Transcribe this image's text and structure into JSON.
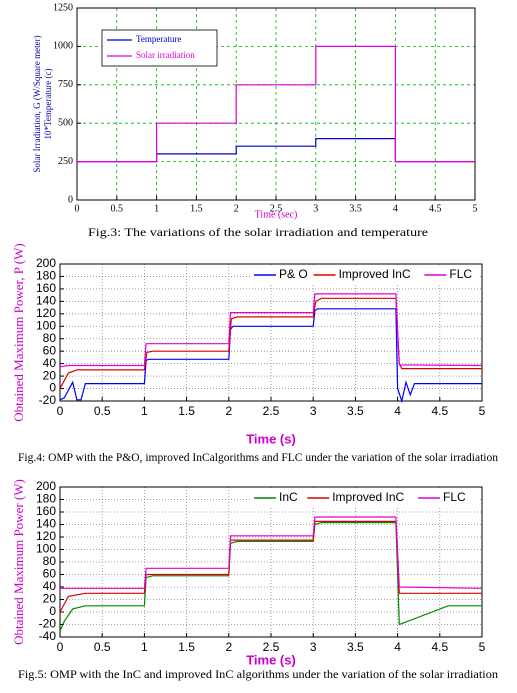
{
  "chart_data": [
    {
      "type": "line",
      "caption": "Fig.3: The variations of the solar irradiation and temperature",
      "xlabel": "Time (sec)",
      "ylabel": [
        "Solar Irradiation, G (W/Square meter)",
        "10*Temperature (c)"
      ],
      "xlim": [
        0,
        5
      ],
      "ylim": [
        0,
        1250
      ],
      "xticks": [
        0,
        0.5,
        1,
        1.5,
        2,
        2.5,
        3,
        3.5,
        4,
        4.5,
        5
      ],
      "yticks": [
        0,
        250,
        500,
        750,
        1000,
        1250
      ],
      "grid": true,
      "grid_color": "#00b000",
      "legend": "upper left",
      "series": [
        {
          "name": "Temperature",
          "color": "#0000cc",
          "x": [
            0,
            1,
            1,
            2,
            2,
            3,
            3,
            4,
            4,
            5
          ],
          "values": [
            250,
            250,
            300,
            300,
            350,
            350,
            400,
            400,
            250,
            250
          ]
        },
        {
          "name": "Solar irradiation",
          "color": "#dd00dd",
          "x": [
            0,
            1,
            1,
            2,
            2,
            3,
            3,
            4,
            4,
            5
          ],
          "values": [
            250,
            250,
            500,
            500,
            750,
            750,
            1000,
            1000,
            250,
            250
          ]
        }
      ]
    },
    {
      "type": "line",
      "caption": "Fig.4: OMP with the P&O, improved InCalgorithms and FLC under the variation of the solar irradiation",
      "xlabel": "Time (s)",
      "ylabel": [
        "Obtained Maximum Power, P (W)"
      ],
      "xlim": [
        0,
        5
      ],
      "ylim": [
        -20,
        200
      ],
      "xticks": [
        0,
        0.5,
        1,
        1.5,
        2,
        2.5,
        3,
        3.5,
        4,
        4.5,
        5
      ],
      "yticks": [
        -20,
        0,
        20,
        40,
        60,
        80,
        100,
        120,
        140,
        160,
        180,
        200
      ],
      "grid": true,
      "grid_color": "#888888",
      "legend": "upper right",
      "series": [
        {
          "name": "P& O",
          "color": "#0000ff",
          "x": [
            0,
            0.05,
            0.15,
            0.2,
            0.25,
            0.3,
            1.0,
            1.02,
            1.05,
            2.0,
            2.02,
            2.05,
            3.0,
            3.02,
            3.05,
            3.98,
            4.0,
            4.05,
            4.1,
            4.15,
            4.2,
            5
          ],
          "values": [
            -18,
            -15,
            10,
            -18,
            -18,
            8,
            8,
            45,
            47,
            47,
            95,
            100,
            100,
            125,
            128,
            128,
            0,
            -20,
            10,
            -10,
            8,
            8
          ]
        },
        {
          "name": "Improved InC",
          "color": "#dd0000",
          "x": [
            0,
            0.1,
            0.2,
            1.0,
            1.03,
            1.1,
            2.0,
            2.03,
            2.1,
            3.0,
            3.03,
            3.1,
            3.98,
            4.02,
            4.05,
            5
          ],
          "values": [
            0,
            25,
            30,
            30,
            58,
            60,
            60,
            112,
            115,
            115,
            140,
            145,
            145,
            40,
            32,
            32
          ]
        },
        {
          "name": "FLC",
          "color": "#dd00dd",
          "x": [
            0,
            0.1,
            1.0,
            1.02,
            2.0,
            2.02,
            3.0,
            3.02,
            3.98,
            4.02,
            5
          ],
          "values": [
            35,
            37,
            37,
            72,
            72,
            122,
            122,
            152,
            152,
            38,
            37
          ]
        }
      ]
    },
    {
      "type": "line",
      "caption": "Fig.5: OMP with the InC and improved InC algorithms under the variation of the solar irradiation",
      "xlabel": "Time (s)",
      "ylabel": [
        "Obtained Maximum Power (W)"
      ],
      "xlim": [
        0,
        5
      ],
      "ylim": [
        -40,
        200
      ],
      "xticks": [
        0,
        0.5,
        1,
        1.5,
        2,
        2.5,
        3,
        3.5,
        4,
        4.5,
        5
      ],
      "yticks": [
        -40,
        -20,
        0,
        20,
        40,
        60,
        80,
        100,
        120,
        140,
        160,
        180,
        200
      ],
      "grid": true,
      "grid_color": "#888888",
      "legend": "upper right",
      "series": [
        {
          "name": "InC",
          "color": "#008800",
          "x": [
            0,
            0.05,
            0.15,
            0.3,
            1.0,
            1.02,
            1.1,
            2.0,
            2.02,
            2.1,
            3.0,
            3.02,
            3.1,
            3.98,
            4.02,
            4.6,
            5
          ],
          "values": [
            -30,
            -15,
            5,
            10,
            10,
            55,
            58,
            58,
            110,
            113,
            113,
            140,
            143,
            143,
            -20,
            10,
            10
          ]
        },
        {
          "name": "Improved InC",
          "color": "#dd0000",
          "x": [
            0,
            0.1,
            0.3,
            1.0,
            1.02,
            2.0,
            2.02,
            3.0,
            3.02,
            3.98,
            4.02,
            5
          ],
          "values": [
            0,
            25,
            30,
            30,
            60,
            60,
            115,
            115,
            145,
            145,
            30,
            30
          ]
        },
        {
          "name": "FLC",
          "color": "#dd00dd",
          "x": [
            0,
            1.0,
            1.02,
            2.0,
            2.02,
            3.0,
            3.02,
            3.98,
            4.02,
            5
          ],
          "values": [
            38,
            38,
            70,
            70,
            122,
            122,
            152,
            152,
            40,
            38
          ]
        }
      ]
    }
  ]
}
